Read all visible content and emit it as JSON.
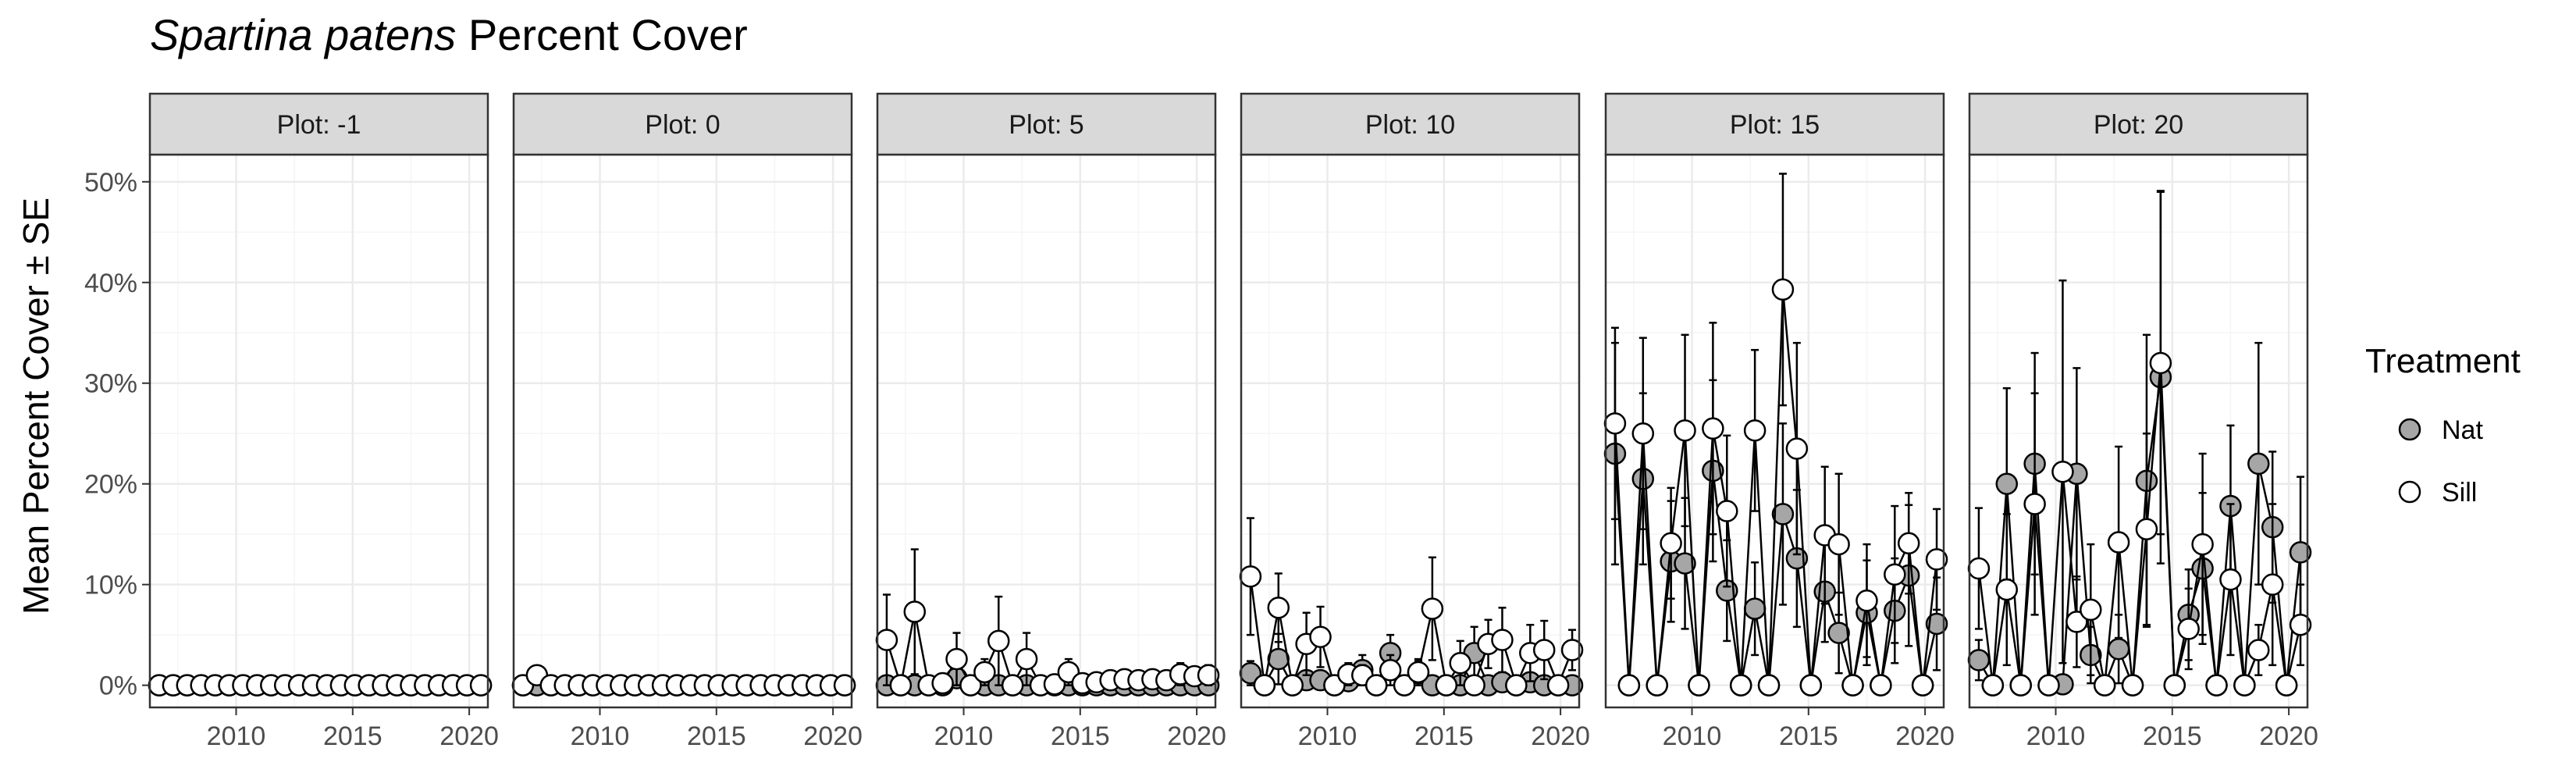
{
  "title": {
    "italic": "Spartina patens",
    "rest": " Percent Cover"
  },
  "colors": {
    "Nat": "#a6a6a6",
    "Sill": "#ffffff",
    "strip_fill": "#d9d9d9",
    "grid_major": "#ebebeb",
    "grid_minor": "#f5f5f5"
  },
  "chart_data": {
    "type": "line",
    "title": "Spartina patens Percent Cover",
    "ylabel": "Mean Percent Cover ± SE",
    "xlabel": "",
    "xlim": [
      2006.3,
      2020.8
    ],
    "ylim": [
      -2.2,
      52.7
    ],
    "x_ticks": [
      2010,
      2015,
      2020
    ],
    "x_tick_labels": [
      "2010",
      "2015",
      "2020"
    ],
    "y_ticks": [
      0,
      10,
      20,
      30,
      40,
      50
    ],
    "y_tick_labels": [
      "0%",
      "10%",
      "20%",
      "30%",
      "40%",
      "50%"
    ],
    "grid": true,
    "legend": {
      "title": "Treatment",
      "position": "right",
      "entries": [
        "Nat",
        "Sill"
      ]
    },
    "panels": [
      {
        "label": "Plot: -1",
        "series": [
          {
            "name": "Nat",
            "x": [
              2006.7,
              2007.3,
              2007.9,
              2008.5,
              2009.1,
              2009.7,
              2010.3,
              2010.9,
              2011.5,
              2012.1,
              2012.7,
              2013.3,
              2013.9,
              2014.5,
              2015.1,
              2015.7,
              2016.3,
              2016.9,
              2017.5,
              2018.1,
              2018.7,
              2019.3,
              2019.9,
              2020.5
            ],
            "y": [
              0,
              0,
              0,
              0,
              0,
              0,
              0,
              0,
              0,
              0,
              0,
              0,
              0,
              0,
              0,
              0,
              0,
              0,
              0,
              0,
              0,
              0,
              0,
              0
            ],
            "se": [
              0,
              0,
              0,
              0,
              0,
              0,
              0,
              0,
              0,
              0,
              0,
              0,
              0,
              0,
              0,
              0,
              0,
              0,
              0,
              0,
              0,
              0,
              0,
              0
            ]
          },
          {
            "name": "Sill",
            "x": [
              2006.7,
              2007.3,
              2007.9,
              2008.5,
              2009.1,
              2009.7,
              2010.3,
              2010.9,
              2011.5,
              2012.1,
              2012.7,
              2013.3,
              2013.9,
              2014.5,
              2015.1,
              2015.7,
              2016.3,
              2016.9,
              2017.5,
              2018.1,
              2018.7,
              2019.3,
              2019.9,
              2020.5
            ],
            "y": [
              0,
              0,
              0,
              0,
              0,
              0,
              0,
              0,
              0,
              0,
              0,
              0,
              0,
              0,
              0,
              0,
              0,
              0,
              0,
              0,
              0,
              0,
              0,
              0
            ],
            "se": [
              0,
              0,
              0,
              0,
              0,
              0,
              0,
              0,
              0,
              0,
              0,
              0,
              0,
              0,
              0,
              0,
              0,
              0,
              0,
              0,
              0,
              0,
              0,
              0
            ]
          }
        ]
      },
      {
        "label": "Plot: 0",
        "series": [
          {
            "name": "Nat",
            "x": [
              2006.7,
              2007.3,
              2007.9,
              2008.5,
              2009.1,
              2009.7,
              2010.3,
              2010.9,
              2011.5,
              2012.1,
              2012.7,
              2013.3,
              2013.9,
              2014.5,
              2015.1,
              2015.7,
              2016.3,
              2016.9,
              2017.5,
              2018.1,
              2018.7,
              2019.3,
              2019.9,
              2020.5
            ],
            "y": [
              0,
              0,
              0,
              0,
              0,
              0,
              0,
              0,
              0,
              0,
              0,
              0,
              0,
              0,
              0,
              0,
              0,
              0,
              0,
              0,
              0,
              0,
              0,
              0
            ],
            "se": [
              0,
              0,
              0,
              0,
              0,
              0,
              0,
              0,
              0,
              0,
              0,
              0,
              0,
              0,
              0,
              0,
              0,
              0,
              0,
              0,
              0,
              0,
              0,
              0
            ]
          },
          {
            "name": "Sill",
            "x": [
              2006.7,
              2007.3,
              2007.9,
              2008.5,
              2009.1,
              2009.7,
              2010.3,
              2010.9,
              2011.5,
              2012.1,
              2012.7,
              2013.3,
              2013.9,
              2014.5,
              2015.1,
              2015.7,
              2016.3,
              2016.9,
              2017.5,
              2018.1,
              2018.7,
              2019.3,
              2019.9,
              2020.5
            ],
            "y": [
              0,
              1,
              0,
              0,
              0,
              0,
              0,
              0,
              0,
              0,
              0,
              0,
              0,
              0,
              0,
              0,
              0,
              0,
              0,
              0,
              0,
              0,
              0,
              0
            ],
            "se": [
              0,
              0.8,
              0,
              0,
              0,
              0,
              0,
              0,
              0,
              0,
              0,
              0,
              0,
              0,
              0,
              0,
              0,
              0,
              0,
              0,
              0,
              0,
              0,
              0
            ]
          }
        ]
      },
      {
        "label": "Plot: 5",
        "series": [
          {
            "name": "Nat",
            "x": [
              2006.7,
              2007.3,
              2007.9,
              2008.5,
              2009.1,
              2009.7,
              2010.3,
              2010.9,
              2011.5,
              2012.1,
              2012.7,
              2013.3,
              2013.9,
              2014.5,
              2015.1,
              2015.7,
              2016.3,
              2016.9,
              2017.5,
              2018.1,
              2018.7,
              2019.3,
              2019.9,
              2020.5
            ],
            "y": [
              0,
              0,
              0,
              0,
              0,
              0.7,
              0,
              0,
              0,
              0,
              0,
              0,
              0,
              0,
              0,
              0,
              0,
              0,
              0,
              0,
              0,
              0,
              0,
              0
            ],
            "se": [
              0,
              0,
              0,
              0,
              0,
              0.7,
              0,
              0,
              0,
              0,
              0,
              0,
              0,
              0,
              0,
              0,
              0,
              0,
              0,
              0,
              0,
              0,
              0,
              0
            ]
          },
          {
            "name": "Sill",
            "x": [
              2006.7,
              2007.3,
              2007.9,
              2008.5,
              2009.1,
              2009.7,
              2010.3,
              2010.9,
              2011.5,
              2012.1,
              2012.7,
              2013.3,
              2013.9,
              2014.5,
              2015.1,
              2015.7,
              2016.3,
              2016.9,
              2017.5,
              2018.1,
              2018.7,
              2019.3,
              2019.9,
              2020.5
            ],
            "y": [
              4.5,
              0,
              7.3,
              0,
              0.2,
              2.6,
              0,
              1.3,
              4.4,
              0,
              2.6,
              0,
              0.1,
              1.3,
              0.2,
              0.3,
              0.5,
              0.6,
              0.5,
              0.6,
              0.5,
              1.1,
              0.9,
              1.0
            ],
            "se": [
              4.5,
              0,
              6.2,
              0,
              0.2,
              2.6,
              0,
              1.3,
              4.4,
              0,
              2.6,
              0,
              0.1,
              1.3,
              0.2,
              0.3,
              0.5,
              0.6,
              0.5,
              0.6,
              0.5,
              1.1,
              0.9,
              1.0
            ]
          }
        ]
      },
      {
        "label": "Plot: 10",
        "series": [
          {
            "name": "Nat",
            "x": [
              2006.7,
              2007.3,
              2007.9,
              2008.5,
              2009.1,
              2009.7,
              2010.3,
              2010.9,
              2011.5,
              2012.1,
              2012.7,
              2013.3,
              2013.9,
              2014.5,
              2015.1,
              2015.7,
              2016.3,
              2016.9,
              2017.5,
              2018.1,
              2018.7,
              2019.3,
              2019.9,
              2020.5
            ],
            "y": [
              1.2,
              0,
              2.6,
              0,
              0.5,
              0.5,
              0,
              0.4,
              1.5,
              0,
              3.2,
              0,
              1.2,
              0,
              0,
              0,
              3.2,
              0,
              0.3,
              0,
              0.3,
              0,
              0,
              0
            ],
            "se": [
              1.2,
              0,
              2.5,
              0,
              0.5,
              0.5,
              0,
              0.4,
              1.5,
              0,
              1.8,
              0,
              1.2,
              0,
              0,
              0,
              2.6,
              0,
              0.3,
              0,
              0.3,
              0,
              0,
              0
            ]
          },
          {
            "name": "Sill",
            "x": [
              2006.7,
              2007.3,
              2007.9,
              2008.5,
              2009.1,
              2009.7,
              2010.3,
              2010.9,
              2011.5,
              2012.1,
              2012.7,
              2013.3,
              2013.9,
              2014.5,
              2015.1,
              2015.7,
              2016.3,
              2016.9,
              2017.5,
              2018.1,
              2018.7,
              2019.3,
              2019.9,
              2020.5
            ],
            "y": [
              10.8,
              0,
              7.7,
              0,
              4.1,
              4.8,
              0,
              1.1,
              1.0,
              0,
              1.5,
              0,
              1.3,
              7.6,
              0,
              2.2,
              0,
              4.1,
              4.5,
              0,
              3.2,
              3.5,
              0,
              3.5
            ],
            "se": [
              5.8,
              0,
              3.4,
              0,
              3.1,
              3.0,
              0,
              1.1,
              1.0,
              0,
              1.5,
              0,
              1.3,
              5.1,
              0,
              2.2,
              0,
              2.4,
              3.2,
              0,
              2.8,
              2.9,
              0,
              2.0
            ]
          }
        ]
      },
      {
        "label": "Plot: 15",
        "series": [
          {
            "name": "Nat",
            "x": [
              2006.7,
              2007.3,
              2007.9,
              2008.5,
              2009.1,
              2009.7,
              2010.3,
              2010.9,
              2011.5,
              2012.1,
              2012.7,
              2013.3,
              2013.9,
              2014.5,
              2015.1,
              2015.7,
              2016.3,
              2016.9,
              2017.5,
              2018.1,
              2018.7,
              2019.3,
              2019.9,
              2020.5
            ],
            "y": [
              23.0,
              0,
              20.5,
              0,
              12.3,
              12.1,
              0,
              21.3,
              9.4,
              0,
              7.6,
              0,
              17.0,
              12.6,
              0,
              9.3,
              5.2,
              0,
              7.2,
              0,
              7.4,
              10.9,
              0,
              6.1
            ],
            "se": [
              11.0,
              0,
              8.5,
              0,
              6.0,
              6.5,
              0,
              9.0,
              5.0,
              0,
              4.6,
              0,
              9.0,
              6.8,
              0,
              5.0,
              4.0,
              0,
              5.2,
              0,
              5.2,
              7.0,
              0,
              4.6
            ]
          },
          {
            "name": "Sill",
            "x": [
              2006.7,
              2007.3,
              2007.9,
              2008.5,
              2009.1,
              2009.7,
              2010.3,
              2010.9,
              2011.5,
              2012.1,
              2012.7,
              2013.3,
              2013.9,
              2014.5,
              2015.1,
              2015.7,
              2016.3,
              2016.9,
              2017.5,
              2018.1,
              2018.7,
              2019.3,
              2019.9,
              2020.5
            ],
            "y": [
              26.0,
              0,
              25.0,
              0,
              14.1,
              25.3,
              0,
              25.5,
              17.3,
              0,
              25.3,
              0,
              39.3,
              23.5,
              0,
              14.9,
              14.0,
              0,
              8.4,
              0,
              11.0,
              14.1,
              0,
              12.5
            ],
            "se": [
              9.5,
              0,
              9.5,
              0,
              5.5,
              9.5,
              0,
              10.5,
              7.5,
              0,
              8.0,
              0,
              11.5,
              10.5,
              0,
              6.8,
              7.0,
              0,
              5.6,
              0,
              6.8,
              5.0,
              0,
              5.0
            ]
          }
        ]
      },
      {
        "label": "Plot: 20",
        "series": [
          {
            "name": "Nat",
            "x": [
              2006.7,
              2007.3,
              2007.9,
              2008.5,
              2009.1,
              2009.7,
              2010.3,
              2010.9,
              2011.5,
              2012.1,
              2012.7,
              2013.3,
              2013.9,
              2014.5,
              2015.1,
              2015.7,
              2016.3,
              2016.9,
              2017.5,
              2018.1,
              2018.7,
              2019.3,
              2019.9,
              2020.5
            ],
            "y": [
              2.5,
              0,
              20.0,
              0,
              22.0,
              0,
              0.1,
              21.0,
              3.0,
              0,
              3.6,
              0,
              20.3,
              30.6,
              0,
              7.0,
              11.6,
              0,
              17.8,
              0,
              22.0,
              15.7,
              0,
              13.2
            ],
            "se": [
              2.0,
              0,
              9.5,
              0,
              11.0,
              0,
              0.1,
              10.5,
              2.8,
              0,
              3.4,
              0,
              14.5,
              18.5,
              0,
              4.5,
              7.5,
              0,
              8.0,
              0,
              12.0,
              7.5,
              0,
              7.5
            ]
          },
          {
            "name": "Sill",
            "x": [
              2006.7,
              2007.3,
              2007.9,
              2008.5,
              2009.1,
              2009.7,
              2010.3,
              2010.9,
              2011.5,
              2012.1,
              2012.7,
              2013.3,
              2013.9,
              2014.5,
              2015.1,
              2015.7,
              2016.3,
              2016.9,
              2017.5,
              2018.1,
              2018.7,
              2019.3,
              2019.9,
              2020.5
            ],
            "y": [
              11.6,
              0,
              9.5,
              0,
              18.0,
              0,
              21.2,
              6.3,
              7.5,
              0,
              14.2,
              0,
              15.5,
              32.0,
              0,
              5.6,
              14.0,
              0,
              10.5,
              0,
              3.5,
              10.0,
              0,
              6.0
            ],
            "se": [
              6.0,
              0,
              7.5,
              0,
              11.0,
              0,
              19.0,
              4.5,
              6.5,
              0,
              9.5,
              0,
              9.5,
              17.0,
              0,
              4.0,
              9.0,
              0,
              7.5,
              0,
              2.5,
              8.0,
              0,
              4.0
            ]
          }
        ]
      }
    ]
  }
}
